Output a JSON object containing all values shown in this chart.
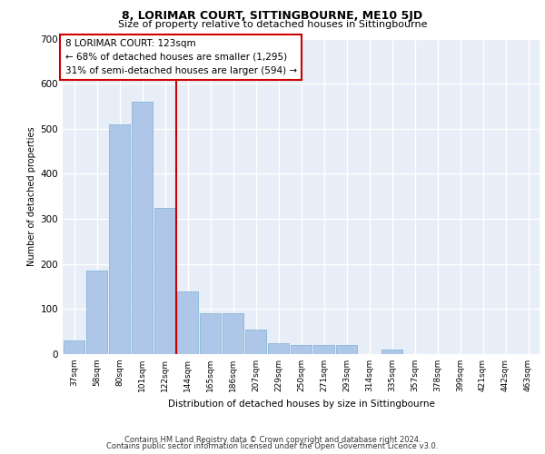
{
  "title1": "8, LORIMAR COURT, SITTINGBOURNE, ME10 5JD",
  "title2": "Size of property relative to detached houses in Sittingbourne",
  "xlabel": "Distribution of detached houses by size in Sittingbourne",
  "ylabel": "Number of detached properties",
  "footer1": "Contains HM Land Registry data © Crown copyright and database right 2024.",
  "footer2": "Contains public sector information licensed under the Open Government Licence v3.0.",
  "categories": [
    "37sqm",
    "58sqm",
    "80sqm",
    "101sqm",
    "122sqm",
    "144sqm",
    "165sqm",
    "186sqm",
    "207sqm",
    "229sqm",
    "250sqm",
    "271sqm",
    "293sqm",
    "314sqm",
    "335sqm",
    "357sqm",
    "378sqm",
    "399sqm",
    "421sqm",
    "442sqm",
    "463sqm"
  ],
  "values": [
    30,
    185,
    510,
    560,
    325,
    140,
    90,
    90,
    55,
    25,
    20,
    20,
    20,
    0,
    10,
    0,
    0,
    0,
    0,
    0,
    0
  ],
  "bar_color": "#aec6e8",
  "bar_edge_color": "#7aafd4",
  "bg_color": "#e8eef7",
  "grid_color": "#ffffff",
  "vline_x": 4.5,
  "vline_color": "#cc0000",
  "annotation_text": "8 LORIMAR COURT: 123sqm\n← 68% of detached houses are smaller (1,295)\n31% of semi-detached houses are larger (594) →",
  "annotation_box_color": "#ffffff",
  "annotation_box_edge": "#cc0000",
  "ylim": [
    0,
    700
  ],
  "yticks": [
    0,
    100,
    200,
    300,
    400,
    500,
    600,
    700
  ]
}
